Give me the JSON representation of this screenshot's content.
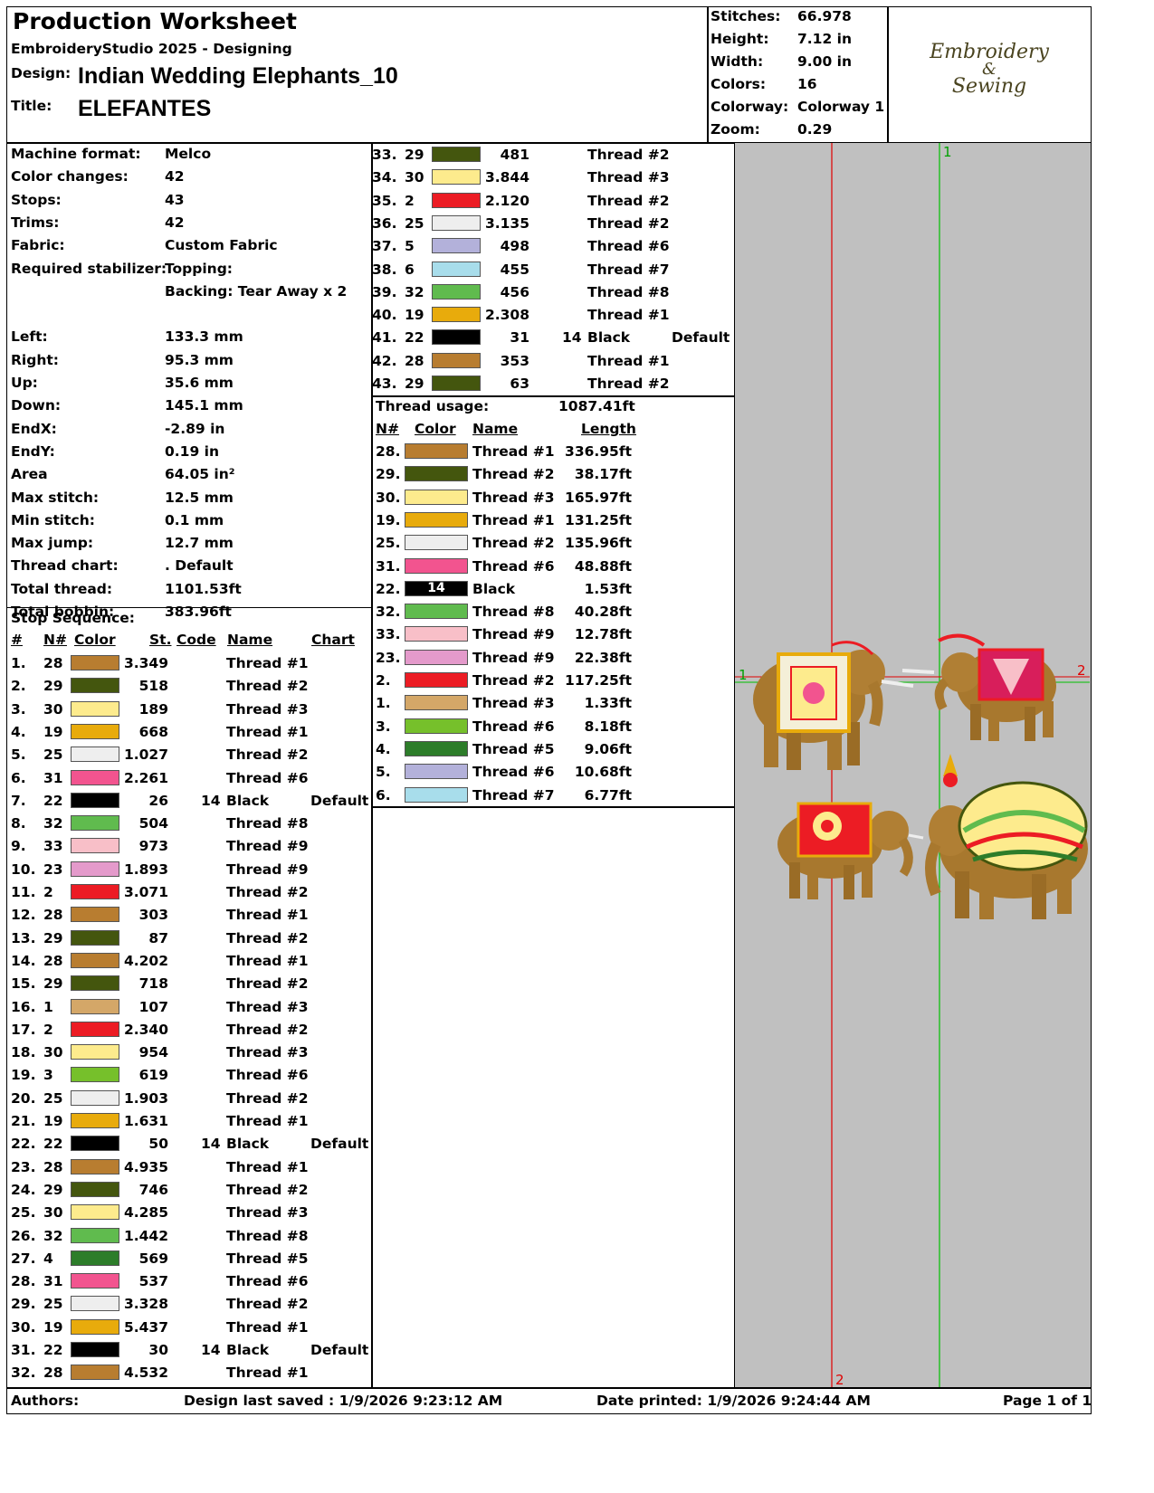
{
  "header": {
    "title": "Production Worksheet",
    "software": "EmbroideryStudio 2025 - Designing",
    "design_label": "Design:",
    "design_value": "Indian Wedding Elephants_10",
    "title_label": "Title:",
    "title_value": "ELEFANTES"
  },
  "stats": [
    {
      "label": "Stitches:",
      "value": "66.978"
    },
    {
      "label": "Height:",
      "value": "7.12 in"
    },
    {
      "label": "Width:",
      "value": "9.00 in"
    },
    {
      "label": "Colors:",
      "value": "16"
    },
    {
      "label": "Colorway:",
      "value": "Colorway 1"
    },
    {
      "label": "Zoom:",
      "value": "0.29"
    }
  ],
  "logo": {
    "line1": "Embroidery",
    "line2": "&",
    "line3": "Sewing"
  },
  "specs": [
    {
      "label": "Machine format:",
      "value": "Melco"
    },
    {
      "label": "Color changes:",
      "value": "42"
    },
    {
      "label": "Stops:",
      "value": "43"
    },
    {
      "label": "Trims:",
      "value": "42"
    },
    {
      "label": "Fabric:",
      "value": "Custom Fabric"
    },
    {
      "label": "Required stabilizer:",
      "value": "Topping:"
    },
    {
      "label": "",
      "value": "Backing: Tear Away x 2"
    },
    {
      "label": "",
      "value": ""
    },
    {
      "label": "Left:",
      "value": "133.3 mm"
    },
    {
      "label": "Right:",
      "value": "95.3 mm"
    },
    {
      "label": "Up:",
      "value": "35.6 mm"
    },
    {
      "label": "Down:",
      "value": "145.1 mm"
    },
    {
      "label": "EndX:",
      "value": "-2.89 in"
    },
    {
      "label": "EndY:",
      "value": "0.19 in"
    },
    {
      "label": "Area",
      "value": " 64.05 in²"
    },
    {
      "label": "Max stitch:",
      "value": "12.5 mm"
    },
    {
      "label": "Min stitch:",
      "value": "0.1 mm"
    },
    {
      "label": "Max jump:",
      "value": "12.7 mm"
    },
    {
      "label": "Thread chart:",
      "value": ". Default"
    },
    {
      "label": "Total thread:",
      "value": "1101.53ft"
    },
    {
      "label": "Total bobbin:",
      "value": "383.96ft"
    }
  ],
  "stop_sequence": {
    "title": "Stop Sequence:",
    "headers": {
      "num": "#",
      "n": "N#",
      "color": "Color",
      "st": "St.",
      "code": "Code",
      "name": "Name",
      "chart": "Chart"
    },
    "rows": [
      {
        "num": "1.",
        "n": "28",
        "color": "#B87D30",
        "st": "3.349",
        "code": "",
        "name": "Thread #1",
        "chart": ""
      },
      {
        "num": "2.",
        "n": "29",
        "color": "#44560E",
        "st": "518",
        "code": "",
        "name": "Thread #2",
        "chart": ""
      },
      {
        "num": "3.",
        "n": "30",
        "color": "#FDEB8D",
        "st": "189",
        "code": "",
        "name": "Thread #3",
        "chart": ""
      },
      {
        "num": "4.",
        "n": "19",
        "color": "#E8AB0C",
        "st": "668",
        "code": "",
        "name": "Thread #1",
        "chart": ""
      },
      {
        "num": "5.",
        "n": "25",
        "color": "#EEEEEE",
        "st": "1.027",
        "code": "",
        "name": "Thread #2",
        "chart": ""
      },
      {
        "num": "6.",
        "n": "31",
        "color": "#F2548F",
        "st": "2.261",
        "code": "",
        "name": "Thread #6",
        "chart": ""
      },
      {
        "num": "7.",
        "n": "22",
        "color": "#000000",
        "st": "26",
        "code": "14",
        "name": "Black",
        "chart": "Default"
      },
      {
        "num": "8.",
        "n": "32",
        "color": "#60BB4E",
        "st": "504",
        "code": "",
        "name": "Thread #8",
        "chart": ""
      },
      {
        "num": "9.",
        "n": "33",
        "color": "#F8BFC8",
        "st": "973",
        "code": "",
        "name": "Thread #9",
        "chart": ""
      },
      {
        "num": "10.",
        "n": "23",
        "color": "#E49ACB",
        "st": "1.893",
        "code": "",
        "name": "Thread #9",
        "chart": ""
      },
      {
        "num": "11.",
        "n": "2",
        "color": "#EC1C24",
        "st": "3.071",
        "code": "",
        "name": "Thread #2",
        "chart": ""
      },
      {
        "num": "12.",
        "n": "28",
        "color": "#B87D30",
        "st": "303",
        "code": "",
        "name": "Thread #1",
        "chart": ""
      },
      {
        "num": "13.",
        "n": "29",
        "color": "#44560E",
        "st": "87",
        "code": "",
        "name": "Thread #2",
        "chart": ""
      },
      {
        "num": "14.",
        "n": "28",
        "color": "#B87D30",
        "st": "4.202",
        "code": "",
        "name": "Thread #1",
        "chart": ""
      },
      {
        "num": "15.",
        "n": "29",
        "color": "#44560E",
        "st": "718",
        "code": "",
        "name": "Thread #2",
        "chart": ""
      },
      {
        "num": "16.",
        "n": "1",
        "color": "#D4A768",
        "st": "107",
        "code": "",
        "name": "Thread #3",
        "chart": ""
      },
      {
        "num": "17.",
        "n": "2",
        "color": "#EC1C24",
        "st": "2.340",
        "code": "",
        "name": "Thread #2",
        "chart": ""
      },
      {
        "num": "18.",
        "n": "30",
        "color": "#FDEB8D",
        "st": "954",
        "code": "",
        "name": "Thread #3",
        "chart": ""
      },
      {
        "num": "19.",
        "n": "3",
        "color": "#76C02B",
        "st": "619",
        "code": "",
        "name": "Thread #6",
        "chart": ""
      },
      {
        "num": "20.",
        "n": "25",
        "color": "#EEEEEE",
        "st": "1.903",
        "code": "",
        "name": "Thread #2",
        "chart": ""
      },
      {
        "num": "21.",
        "n": "19",
        "color": "#E8AB0C",
        "st": "1.631",
        "code": "",
        "name": "Thread #1",
        "chart": ""
      },
      {
        "num": "22.",
        "n": "22",
        "color": "#000000",
        "st": "50",
        "code": "14",
        "name": "Black",
        "chart": "Default"
      },
      {
        "num": "23.",
        "n": "28",
        "color": "#B87D30",
        "st": "4.935",
        "code": "",
        "name": "Thread #1",
        "chart": ""
      },
      {
        "num": "24.",
        "n": "29",
        "color": "#44560E",
        "st": "746",
        "code": "",
        "name": "Thread #2",
        "chart": ""
      },
      {
        "num": "25.",
        "n": "30",
        "color": "#FDEB8D",
        "st": "4.285",
        "code": "",
        "name": "Thread #3",
        "chart": ""
      },
      {
        "num": "26.",
        "n": "32",
        "color": "#60BB4E",
        "st": "1.442",
        "code": "",
        "name": "Thread #8",
        "chart": ""
      },
      {
        "num": "27.",
        "n": "4",
        "color": "#2D7D2A",
        "st": "569",
        "code": "",
        "name": "Thread #5",
        "chart": ""
      },
      {
        "num": "28.",
        "n": "31",
        "color": "#F2548F",
        "st": "537",
        "code": "",
        "name": "Thread #6",
        "chart": ""
      },
      {
        "num": "29.",
        "n": "25",
        "color": "#EEEEEE",
        "st": "3.328",
        "code": "",
        "name": "Thread #2",
        "chart": ""
      },
      {
        "num": "30.",
        "n": "19",
        "color": "#E8AB0C",
        "st": "5.437",
        "code": "",
        "name": "Thread #1",
        "chart": ""
      },
      {
        "num": "31.",
        "n": "22",
        "color": "#000000",
        "st": "30",
        "code": "14",
        "name": "Black",
        "chart": "Default"
      },
      {
        "num": "32.",
        "n": "28",
        "color": "#B87D30",
        "st": "4.532",
        "code": "",
        "name": "Thread #1",
        "chart": ""
      },
      {
        "num": "33.",
        "n": "29",
        "color": "#44560E",
        "st": "481",
        "code": "",
        "name": "Thread #2",
        "chart": ""
      },
      {
        "num": "34.",
        "n": "30",
        "color": "#FDEB8D",
        "st": "3.844",
        "code": "",
        "name": "Thread #3",
        "chart": ""
      },
      {
        "num": "35.",
        "n": "2",
        "color": "#EC1C24",
        "st": "2.120",
        "code": "",
        "name": "Thread #2",
        "chart": ""
      },
      {
        "num": "36.",
        "n": "25",
        "color": "#EEEEEE",
        "st": "3.135",
        "code": "",
        "name": "Thread #2",
        "chart": ""
      },
      {
        "num": "37.",
        "n": "5",
        "color": "#B3B1DA",
        "st": "498",
        "code": "",
        "name": "Thread #6",
        "chart": ""
      },
      {
        "num": "38.",
        "n": "6",
        "color": "#A8DDEB",
        "st": "455",
        "code": "",
        "name": "Thread #7",
        "chart": ""
      },
      {
        "num": "39.",
        "n": "32",
        "color": "#60BB4E",
        "st": "456",
        "code": "",
        "name": "Thread #8",
        "chart": ""
      },
      {
        "num": "40.",
        "n": "19",
        "color": "#E8AB0C",
        "st": "2.308",
        "code": "",
        "name": "Thread #1",
        "chart": ""
      },
      {
        "num": "41.",
        "n": "22",
        "color": "#000000",
        "st": "31",
        "code": "14",
        "name": "Black",
        "chart": "Default"
      },
      {
        "num": "42.",
        "n": "28",
        "color": "#B87D30",
        "st": "353",
        "code": "",
        "name": "Thread #1",
        "chart": ""
      },
      {
        "num": "43.",
        "n": "29",
        "color": "#44560E",
        "st": "63",
        "code": "",
        "name": "Thread #2",
        "chart": ""
      }
    ]
  },
  "thread_usage": {
    "label": "Thread usage:",
    "total": "1087.41ft",
    "headers": {
      "n": "N#",
      "color": "Color",
      "name": "Name",
      "length": "Length"
    },
    "rows": [
      {
        "n": "28.",
        "color": "#B87D30",
        "code": "",
        "name": "Thread #1",
        "length": "336.95ft"
      },
      {
        "n": "29.",
        "color": "#44560E",
        "code": "",
        "name": "Thread #2",
        "length": "38.17ft"
      },
      {
        "n": "30.",
        "color": "#FDEB8D",
        "code": "",
        "name": "Thread #3",
        "length": "165.97ft"
      },
      {
        "n": "19.",
        "color": "#E8AB0C",
        "code": "",
        "name": "Thread #1",
        "length": "131.25ft"
      },
      {
        "n": "25.",
        "color": "#EEEEEE",
        "code": "",
        "name": "Thread #2",
        "length": "135.96ft"
      },
      {
        "n": "31.",
        "color": "#F2548F",
        "code": "",
        "name": "Thread #6",
        "length": "48.88ft"
      },
      {
        "n": "22.",
        "color": "#000000",
        "code": "14",
        "name": "Black",
        "length": "1.53ft"
      },
      {
        "n": "32.",
        "color": "#60BB4E",
        "code": "",
        "name": "Thread #8",
        "length": "40.28ft"
      },
      {
        "n": "33.",
        "color": "#F8BFC8",
        "code": "",
        "name": "Thread #9",
        "length": "12.78ft"
      },
      {
        "n": "23.",
        "color": "#E49ACB",
        "code": "",
        "name": "Thread #9",
        "length": "22.38ft"
      },
      {
        "n": "2.",
        "color": "#EC1C24",
        "code": "",
        "name": "Thread #2",
        "length": "117.25ft"
      },
      {
        "n": "1.",
        "color": "#D4A768",
        "code": "",
        "name": "Thread #3",
        "length": "1.33ft"
      },
      {
        "n": "3.",
        "color": "#76C02B",
        "code": "",
        "name": "Thread #6",
        "length": "8.18ft"
      },
      {
        "n": "4.",
        "color": "#2D7D2A",
        "code": "",
        "name": "Thread #5",
        "length": "9.06ft"
      },
      {
        "n": "5.",
        "color": "#B3B1DA",
        "code": "",
        "name": "Thread #6",
        "length": "10.68ft"
      },
      {
        "n": "6.",
        "color": "#A8DDEB",
        "code": "",
        "name": "Thread #7",
        "length": "6.77ft"
      }
    ]
  },
  "preview": {
    "axis_labels": {
      "top": "1",
      "left": "1",
      "right": "2",
      "bottom": "2"
    },
    "background": "#C0C0C0"
  },
  "footer": {
    "authors": "Authors:",
    "saved": "Design last saved : 1/9/2026 9:23:12 AM",
    "printed": "Date printed: 1/9/2026 9:24:44 AM",
    "page": "Page 1 of 1"
  }
}
